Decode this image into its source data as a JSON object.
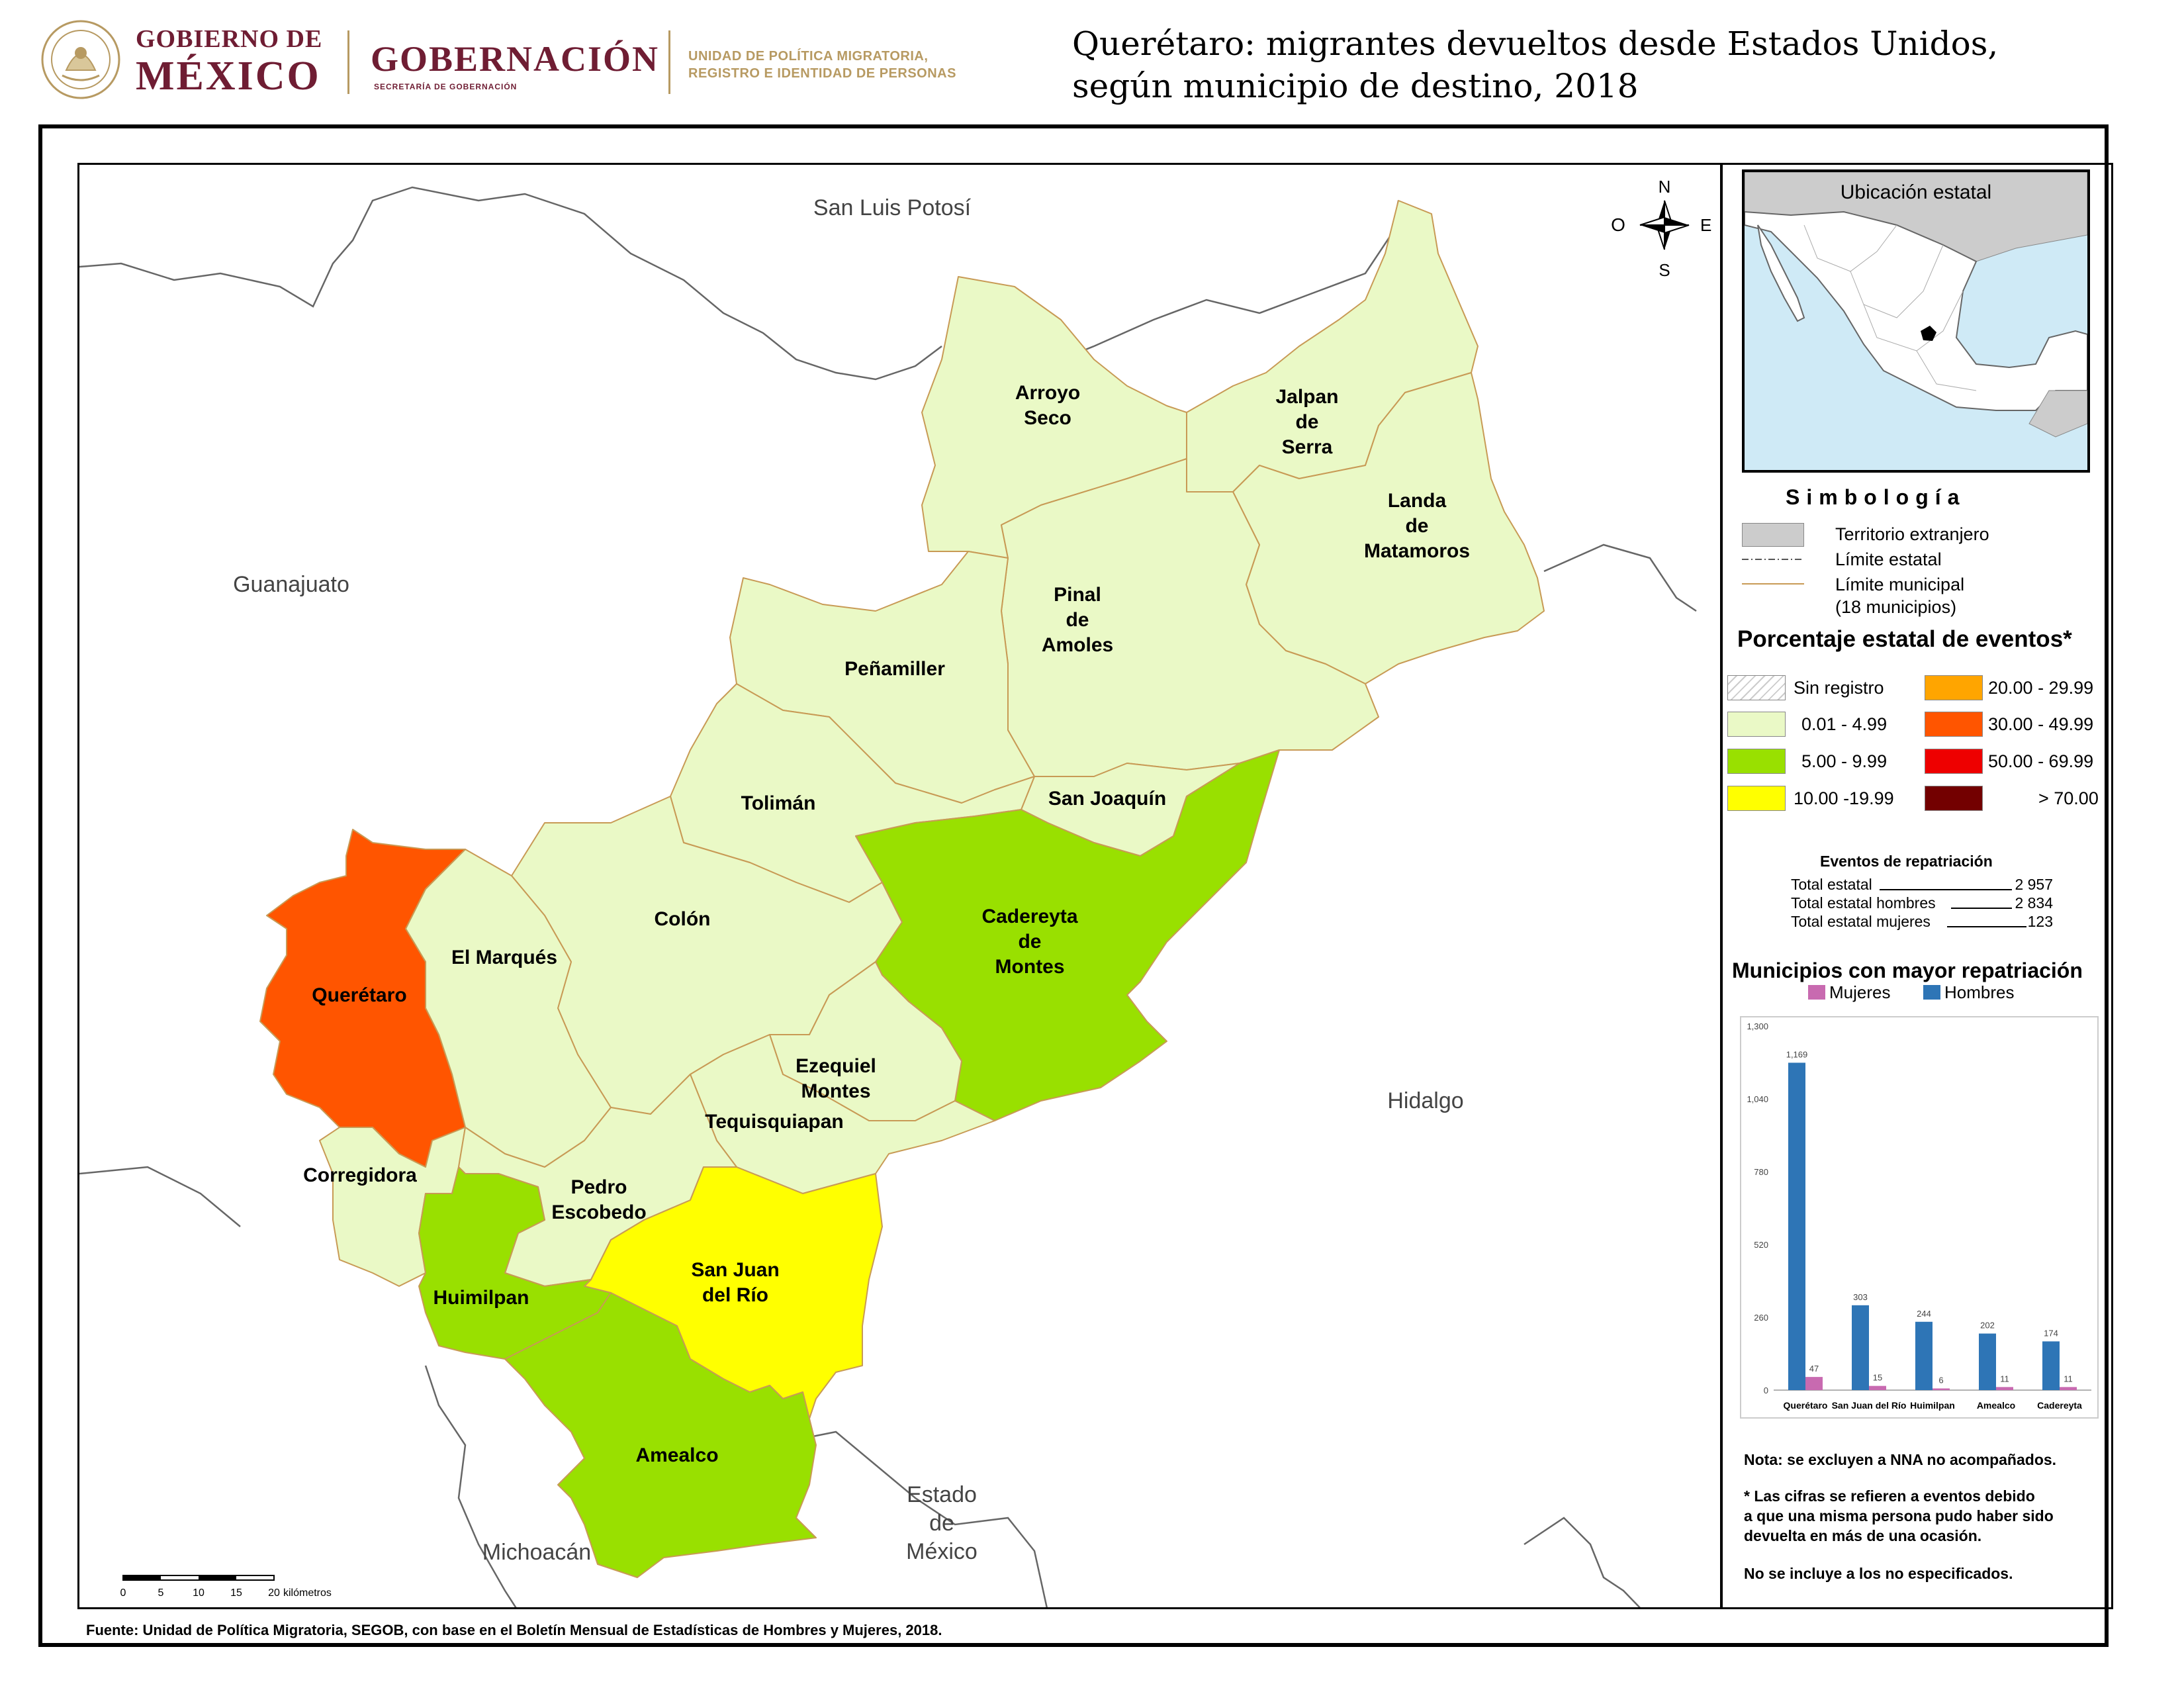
{
  "header": {
    "gobierno_line1": "GOBIERNO DE",
    "gobierno_line2": "MÉXICO",
    "gobernacion": "GOBERNACIÓN",
    "gobernacion_sub": "SECRETARÍA DE GOBERNACIÓN",
    "upm_line1": "UNIDAD DE POLÍTICA MIGRATORIA,",
    "upm_line2": "REGISTRO E IDENTIDAD DE PERSONAS",
    "title_line1": "Querétaro: migrantes devueltos desde Estados Unidos,",
    "title_line2": "según municipio de destino, 2018"
  },
  "colors": {
    "foreign": "#cccccc",
    "water": "#cfeaf6",
    "class_0_01_4_99": "#eaf9c6",
    "class_5_9_99": "#99e000",
    "class_10_19_99": "#ffff00",
    "class_20_29_99": "#ffa500",
    "class_30_49_99": "#ff5500",
    "class_50_69_99": "#ee0000",
    "class_70": "#730000",
    "municipal_border": "#c89a55",
    "hombres": "#2e75b6",
    "mujeres": "#c86ab0"
  },
  "map": {
    "neighbors": {
      "slp": "San Luis Potosí",
      "gto": "Guanajuato",
      "hgo": "Hidalgo",
      "mich": "Michoacán",
      "edomex_1": "Estado",
      "edomex_2": "de",
      "edomex_3": "México"
    },
    "compass": {
      "n": "N",
      "s": "S",
      "e": "E",
      "o": "O"
    },
    "scale": {
      "ticks": [
        "0",
        "5",
        "10",
        "15",
        "20"
      ],
      "unit": "kilómetros"
    },
    "municipios": [
      {
        "name": "Arroyo Seco",
        "lines": [
          "Arroyo",
          "Seco"
        ],
        "class": "0.01 - 4.99"
      },
      {
        "name": "Jalpan de Serra",
        "lines": [
          "Jalpan",
          "de",
          "Serra"
        ],
        "class": "0.01 - 4.99"
      },
      {
        "name": "Landa de Matamoros",
        "lines": [
          "Landa",
          "de",
          "Matamoros"
        ],
        "class": "0.01 - 4.99"
      },
      {
        "name": "Pinal de Amoles",
        "lines": [
          "Pinal",
          "de",
          "Amoles"
        ],
        "class": "0.01 - 4.99"
      },
      {
        "name": "Peñamiller",
        "lines": [
          "Peñamiller"
        ],
        "class": "0.01 - 4.99"
      },
      {
        "name": "San Joaquín",
        "lines": [
          "San Joaquín"
        ],
        "class": "0.01 - 4.99"
      },
      {
        "name": "Tolimán",
        "lines": [
          "Tolimán"
        ],
        "class": "0.01 - 4.99"
      },
      {
        "name": "Colón",
        "lines": [
          "Colón"
        ],
        "class": "0.01 - 4.99"
      },
      {
        "name": "Cadereyta de Montes",
        "lines": [
          "Cadereyta",
          "de",
          "Montes"
        ],
        "class": "5.00 - 9.99"
      },
      {
        "name": "El Marqués",
        "lines": [
          "El Marqués"
        ],
        "class": "0.01 - 4.99"
      },
      {
        "name": "Querétaro",
        "lines": [
          "Querétaro"
        ],
        "class": "30.00 - 49.99"
      },
      {
        "name": "Ezequiel Montes",
        "lines": [
          "Ezequiel",
          "Montes"
        ],
        "class": "0.01 - 4.99"
      },
      {
        "name": "Tequisquiapan",
        "lines": [
          "Tequisquiapan"
        ],
        "class": "0.01 - 4.99"
      },
      {
        "name": "Corregidora",
        "lines": [
          "Corregidora"
        ],
        "class": "0.01 - 4.99"
      },
      {
        "name": "Pedro Escobedo",
        "lines": [
          "Pedro",
          "Escobedo"
        ],
        "class": "0.01 - 4.99"
      },
      {
        "name": "San Juan del Río",
        "lines": [
          "San Juan",
          "del Río"
        ],
        "class": "10.00 -19.99"
      },
      {
        "name": "Huimilpan",
        "lines": [
          "Huimilpan"
        ],
        "class": "5.00 - 9.99"
      },
      {
        "name": "Amealco",
        "lines": [
          "Amealco"
        ],
        "class": "5.00 - 9.99"
      }
    ]
  },
  "side": {
    "location_title": "Ubicación estatal",
    "simbologia": "Simbología",
    "legend": {
      "foreign": "Territorio extranjero",
      "state_limit": "Límite estatal",
      "muni_limit": "Límite municipal",
      "muni_count": "(18 municipios)"
    },
    "pct_title": "Porcentaje estatal de eventos*",
    "classes_left": [
      "Sin registro",
      "0.01  - 4.99",
      "5.00  - 9.99",
      "10.00 -19.99"
    ],
    "classes_right": [
      "20.00 - 29.99",
      "30.00 - 49.99",
      "50.00 - 69.99",
      "> 70.00"
    ],
    "repatriacion": {
      "title": "Eventos de repatriación",
      "rows": [
        {
          "label": "Total estatal",
          "value": "2 957"
        },
        {
          "label": "Total estatal hombres",
          "value": "2 834"
        },
        {
          "label": "Total estatal mujeres",
          "value": "123"
        }
      ]
    },
    "chart_title": "Municipios con mayor repatriación",
    "notes": {
      "n1": "Nota: se excluyen a NNA no acompañados.",
      "n2_1": "* Las cifras se refieren a eventos debido",
      "n2_2": "a que una misma persona pudo haber sido",
      "n2_3": "devuelta en más de una ocasión.",
      "n3": "No se incluye a los no especificados."
    }
  },
  "chart_data": {
    "type": "bar",
    "categories": [
      "Querétaro",
      "San Juan del Río",
      "Huimilpan",
      "Amealco",
      "Cadereyta"
    ],
    "series": [
      {
        "name": "Hombres",
        "values": [
          1169,
          303,
          244,
          202,
          174
        ]
      },
      {
        "name": "Mujeres",
        "values": [
          47,
          15,
          6,
          11,
          11
        ]
      }
    ],
    "ylim": [
      0,
      1300
    ],
    "yticks": [
      "0",
      "260",
      "520",
      "780",
      "1,040",
      "1,300"
    ],
    "data_labels": {
      "Hombres": [
        "1,169",
        "303",
        "244",
        "202",
        "174"
      ],
      "Mujeres": [
        "47",
        "15",
        "6",
        "11",
        "11"
      ]
    },
    "legend": "top",
    "grid": false
  },
  "source": "Fuente: Unidad de Política Migratoria, SEGOB, con base en el Boletín Mensual de Estadísticas de Hombres y Mujeres, 2018."
}
